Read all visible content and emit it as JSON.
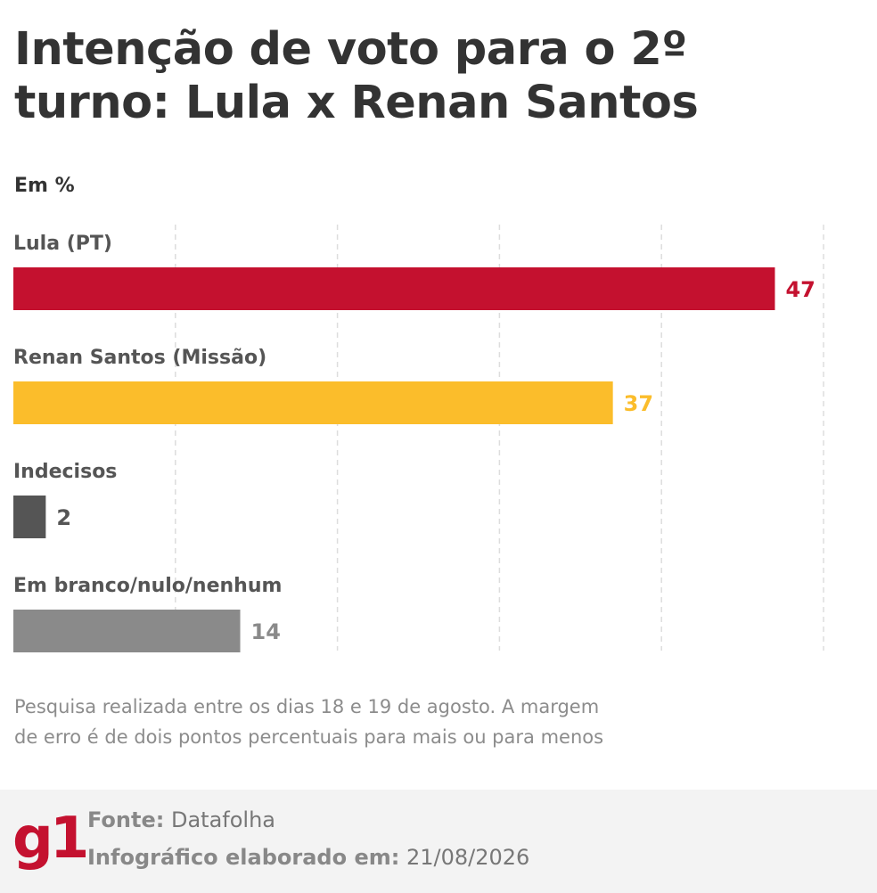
{
  "header": {
    "title": "Intenção de voto para o 2º turno: Lula x Renan Santos",
    "unit_label": "Em %"
  },
  "chart_data": {
    "type": "bar",
    "orientation": "horizontal",
    "categories": [
      "Lula (PT)",
      "Renan Santos (Missão)",
      "Indecisos",
      "Em branco/nulo/nenhum"
    ],
    "values": [
      47,
      37,
      2,
      14
    ],
    "value_labels": [
      "47",
      "37",
      "2",
      "14"
    ],
    "colors": [
      "#c4112f",
      "#fbbd2b",
      "#555555",
      "#8a8a8a"
    ],
    "label_colors": [
      "#c4112f",
      "#fbbd2b",
      "#555555",
      "#8a8a8a"
    ],
    "xlim": [
      0,
      50
    ],
    "grid": true,
    "ylabel": "Em %"
  },
  "note": {
    "line1": "Pesquisa realizada entre os dias 18 e 19 de agosto. A margem",
    "line2": "de erro é de dois pontos percentuais para mais ou para menos"
  },
  "footer": {
    "logo": "g1",
    "source_label": "Fonte:",
    "source_value": "Datafolha",
    "date_label": "Infográfico elaborado em:",
    "date_value": "21/08/2026"
  }
}
